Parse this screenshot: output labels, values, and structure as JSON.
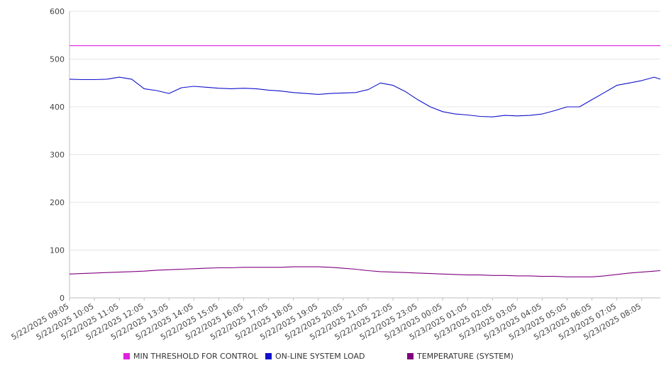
{
  "chart_data": {
    "type": "line",
    "title": "",
    "xlabel": "",
    "ylabel": "",
    "ylim": [
      0,
      600
    ],
    "yticks": [
      0,
      100,
      200,
      300,
      400,
      500,
      600
    ],
    "grid": true,
    "legend_position": "bottom",
    "x_tick_labels": [
      "5/22/2025 09:05",
      "5/22/2025 10:05",
      "5/22/2025 11:05",
      "5/22/2025 12:05",
      "5/22/2025 13:05",
      "5/22/2025 14:05",
      "5/22/2025 15:05",
      "5/22/2025 16:05",
      "5/22/2025 17:05",
      "5/22/2025 18:05",
      "5/22/2025 19:05",
      "5/22/2025 20:05",
      "5/22/2025 21:05",
      "5/22/2025 22:05",
      "5/22/2025 23:05",
      "5/23/2025 00:05",
      "5/23/2025 01:05",
      "5/23/2025 02:05",
      "5/23/2025 03:05",
      "5/23/2025 04:05",
      "5/23/2025 05:05",
      "5/23/2025 06:05",
      "5/23/2025 07:05",
      "5/23/2025 08:05"
    ],
    "x": [
      "5/22/2025 09:05",
      "5/22/2025 09:35",
      "5/22/2025 10:05",
      "5/22/2025 10:35",
      "5/22/2025 11:05",
      "5/22/2025 11:35",
      "5/22/2025 12:05",
      "5/22/2025 12:35",
      "5/22/2025 13:05",
      "5/22/2025 13:35",
      "5/22/2025 14:05",
      "5/22/2025 14:35",
      "5/22/2025 15:05",
      "5/22/2025 15:35",
      "5/22/2025 16:05",
      "5/22/2025 16:35",
      "5/22/2025 17:05",
      "5/22/2025 17:35",
      "5/22/2025 18:05",
      "5/22/2025 18:35",
      "5/22/2025 19:05",
      "5/22/2025 19:35",
      "5/22/2025 20:05",
      "5/22/2025 20:35",
      "5/22/2025 21:05",
      "5/22/2025 21:35",
      "5/22/2025 22:05",
      "5/22/2025 22:35",
      "5/22/2025 23:05",
      "5/22/2025 23:35",
      "5/23/2025 00:05",
      "5/23/2025 00:35",
      "5/23/2025 01:05",
      "5/23/2025 01:35",
      "5/23/2025 02:05",
      "5/23/2025 02:35",
      "5/23/2025 03:05",
      "5/23/2025 03:35",
      "5/23/2025 04:05",
      "5/23/2025 04:35",
      "5/23/2025 05:05",
      "5/23/2025 05:35",
      "5/23/2025 06:05",
      "5/23/2025 06:35",
      "5/23/2025 07:05",
      "5/23/2025 07:35",
      "5/23/2025 08:05",
      "5/23/2025 08:35",
      "5/23/2025 08:50"
    ],
    "series": [
      {
        "name": "MIN THRESHOLD FOR CONTROL",
        "color": "#e020e0",
        "values": [
          528,
          528,
          528,
          528,
          528,
          528,
          528,
          528,
          528,
          528,
          528,
          528,
          528,
          528,
          528,
          528,
          528,
          528,
          528,
          528,
          528,
          528,
          528,
          528,
          528,
          528,
          528,
          528,
          528,
          528,
          528,
          528,
          528,
          528,
          528,
          528,
          528,
          528,
          528,
          528,
          528,
          528,
          528,
          528,
          528,
          528,
          528,
          528,
          528
        ]
      },
      {
        "name": "ON-LINE SYSTEM LOAD",
        "color": "#1010cc",
        "values": [
          458,
          457,
          457,
          458,
          462,
          458,
          438,
          434,
          428,
          440,
          443,
          441,
          439,
          438,
          439,
          438,
          435,
          433,
          430,
          428,
          426,
          428,
          429,
          430,
          436,
          450,
          445,
          432,
          415,
          400,
          390,
          385,
          383,
          380,
          379,
          382,
          381,
          382,
          385,
          392,
          400,
          400,
          415,
          430,
          445,
          450,
          455,
          462,
          458
        ]
      },
      {
        "name": "TEMPERATURE (SYSTEM)",
        "color": "#800080",
        "values": [
          50,
          51,
          52,
          53,
          54,
          55,
          56,
          58,
          59,
          60,
          61,
          62,
          63,
          63,
          64,
          64,
          64,
          64,
          65,
          65,
          65,
          64,
          62,
          60,
          57,
          55,
          54,
          53,
          52,
          51,
          50,
          49,
          48,
          48,
          47,
          47,
          46,
          46,
          45,
          45,
          44,
          44,
          44,
          46,
          49,
          52,
          54,
          56,
          57
        ]
      }
    ]
  }
}
